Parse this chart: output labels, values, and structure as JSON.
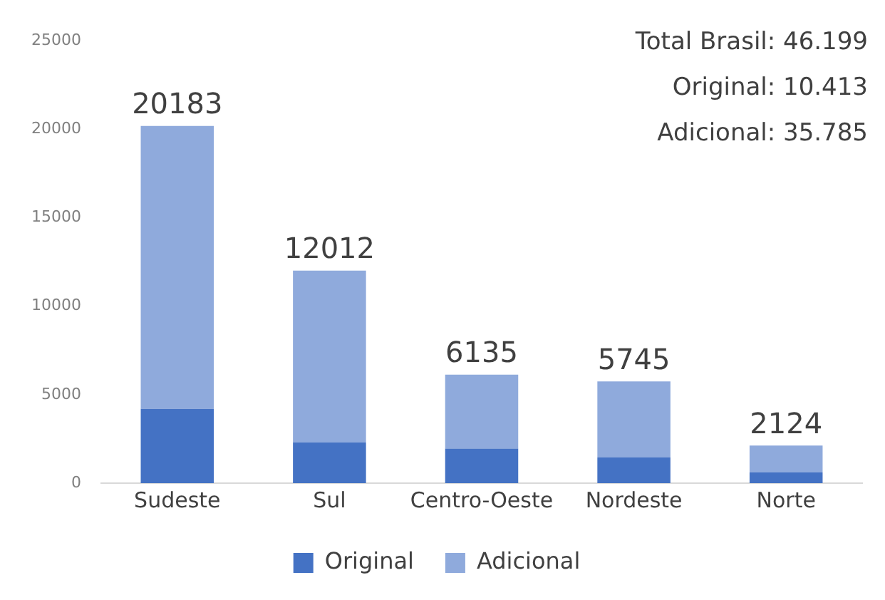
{
  "chart_data": {
    "type": "bar",
    "stacked": true,
    "categories": [
      "Sudeste",
      "Sul",
      "Centro-Oeste",
      "Nordeste",
      "Norte"
    ],
    "series": [
      {
        "name": "Original",
        "color": "#4472c4",
        "values": [
          4200,
          2300,
          1950,
          1450,
          600
        ]
      },
      {
        "name": "Adicional",
        "color": "#8faadc",
        "values": [
          15983,
          9712,
          4185,
          4295,
          1524
        ]
      }
    ],
    "totals": [
      "20183",
      "12012",
      "6135",
      "5745",
      "2124"
    ],
    "ylim": [
      0,
      25000
    ],
    "yticks": [
      0,
      5000,
      10000,
      15000,
      20000,
      25000
    ],
    "grid": false,
    "legend": "bottom",
    "annotations": [
      "Total Brasil: 46.199",
      "Original: 10.413",
      "Adicional: 35.785"
    ]
  }
}
